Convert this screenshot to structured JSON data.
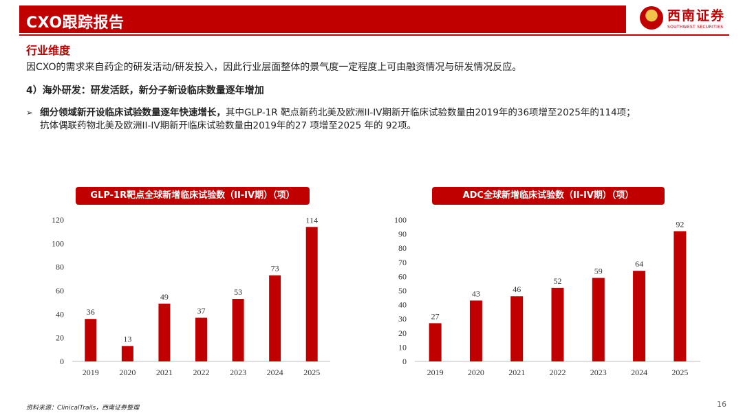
{
  "header": {
    "title": "CXO跟踪报告",
    "logo_name": "西南证券",
    "logo_sub": "SOUTHWEST SECURITIES"
  },
  "section_title": "行业维度",
  "intro": "因CXO的需求来自药企的研发活动/研发投入，因此行业层面整体的景气度一定程度上可由融资情况与研发情况反应。",
  "subhead": "4）海外研发：研发活跃，新分子新设临床数量逐年增加",
  "bullet": {
    "bold": "细分领域新开设临床试验数量逐年快速增长，",
    "text1": "其中GLP-1R 靶点新药北美及欧洲II-IV期新开临床试验数量由2019年的36项增至2025年的114项；",
    "text2": "抗体偶联药物北美及欧洲II-IV期新开临床试验数量由2019年的27 项增至2025 年的 92项。"
  },
  "chart_data": [
    {
      "type": "bar",
      "title": "GLP-1R靶点全球新增临床试验数（II-IV期）（项）",
      "categories": [
        "2019",
        "2020",
        "2021",
        "2022",
        "2023",
        "2024",
        "2025"
      ],
      "values": [
        36,
        13,
        49,
        37,
        53,
        73,
        114
      ],
      "ylim": [
        0,
        120
      ],
      "yticks": [
        0,
        20,
        40,
        60,
        80,
        100,
        120
      ],
      "xlabel": "",
      "ylabel": "",
      "grid": false,
      "bar_color": "#c00000"
    },
    {
      "type": "bar",
      "title": "ADC全球新增临床试验数（II-IV期）（项）",
      "categories": [
        "2019",
        "2020",
        "2021",
        "2022",
        "2023",
        "2024",
        "2025"
      ],
      "values": [
        27,
        43,
        46,
        52,
        59,
        64,
        92
      ],
      "ylim": [
        0,
        100
      ],
      "yticks": [
        0,
        10,
        20,
        30,
        40,
        50,
        60,
        70,
        80,
        90,
        100
      ],
      "xlabel": "",
      "ylabel": "",
      "grid": false,
      "bar_color": "#c00000"
    }
  ],
  "source": "资料来源：ClinicalTrails，西南证券整理",
  "page_number": "16"
}
